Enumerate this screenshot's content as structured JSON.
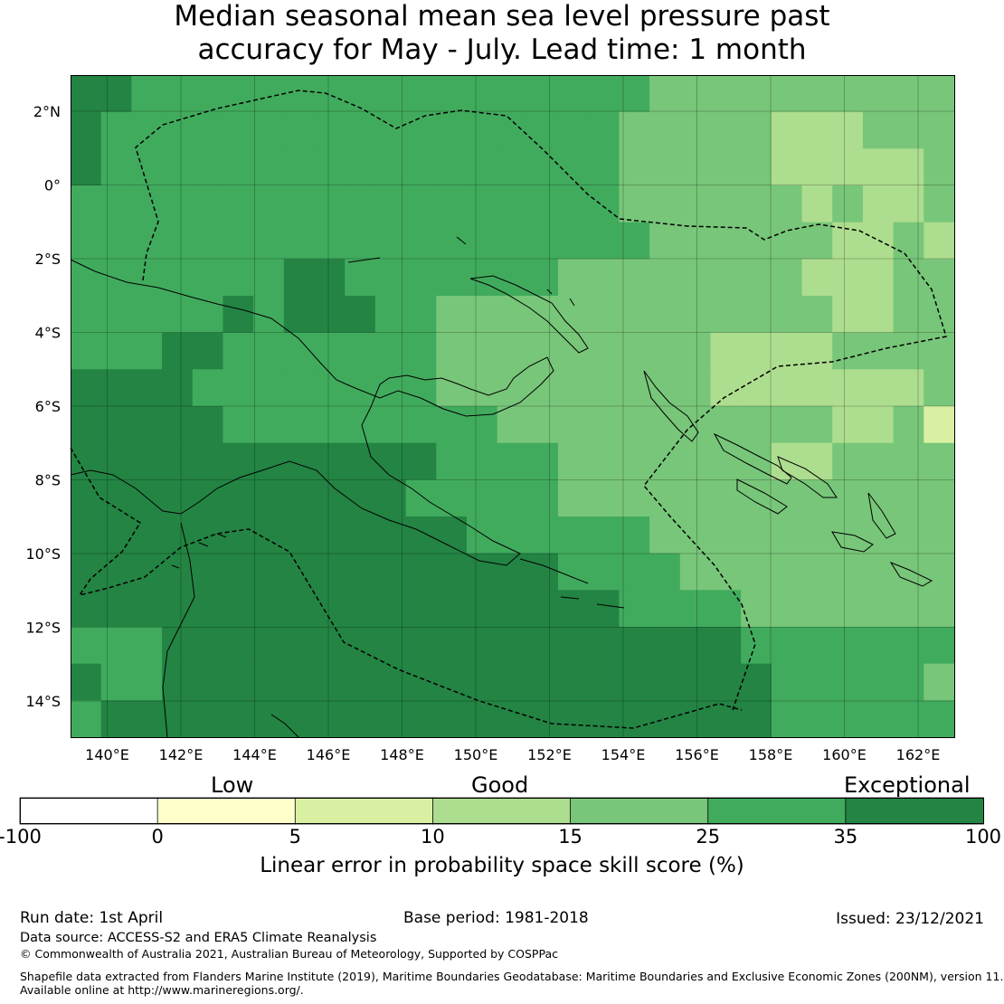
{
  "title": {
    "line1": "Median seasonal mean sea level pressure past",
    "line2": "accuracy for May - July. Lead time: 1 month"
  },
  "map": {
    "lon_labels": [
      "140°E",
      "142°E",
      "144°E",
      "146°E",
      "148°E",
      "150°E",
      "152°E",
      "154°E",
      "156°E",
      "158°E",
      "160°E",
      "162°E"
    ],
    "lat_labels": [
      "2°N",
      "0°",
      "2°S",
      "4°S",
      "6°S",
      "8°S",
      "10°S",
      "12°S",
      "14°S"
    ],
    "gridlines": "on",
    "boundary_style": "dashed",
    "skill_category_colors": [
      "#ffffff",
      "#ffffcc",
      "#d9f0a3",
      "#addd8e",
      "#78c679",
      "#41ab5d",
      "#238443"
    ]
  },
  "legend": {
    "low": "Low",
    "good": "Good",
    "exceptional": "Exceptional",
    "boundaries": [
      "-100",
      "0",
      "5",
      "10",
      "15",
      "25",
      "35",
      "100"
    ],
    "colors": [
      "#ffffff",
      "#ffffcc",
      "#d9f0a3",
      "#addd8e",
      "#78c679",
      "#41ab5d",
      "#238443"
    ],
    "axis_label": "Linear error in probability space skill score (%)"
  },
  "footer": {
    "run_date": "Run date: 1st April",
    "base_period": "Base period: 1981-2018",
    "issued": "Issued: 23/12/2021",
    "data_source": "Data source: ACCESS-S2 and ERA5 Climate Reanalysis",
    "copyright": "© Commonwealth of Australia 2021, Australian Bureau of Meteorology, Supported by COSPPac",
    "shapefile": "Shapefile data extracted from Flanders Marine Institute (2019), Maritime Boundaries Geodatabase: Maritime Boundaries and Exclusive Economic Zones (200NM), version 11.",
    "available": "Available online at http://www.marineregions.org/."
  }
}
